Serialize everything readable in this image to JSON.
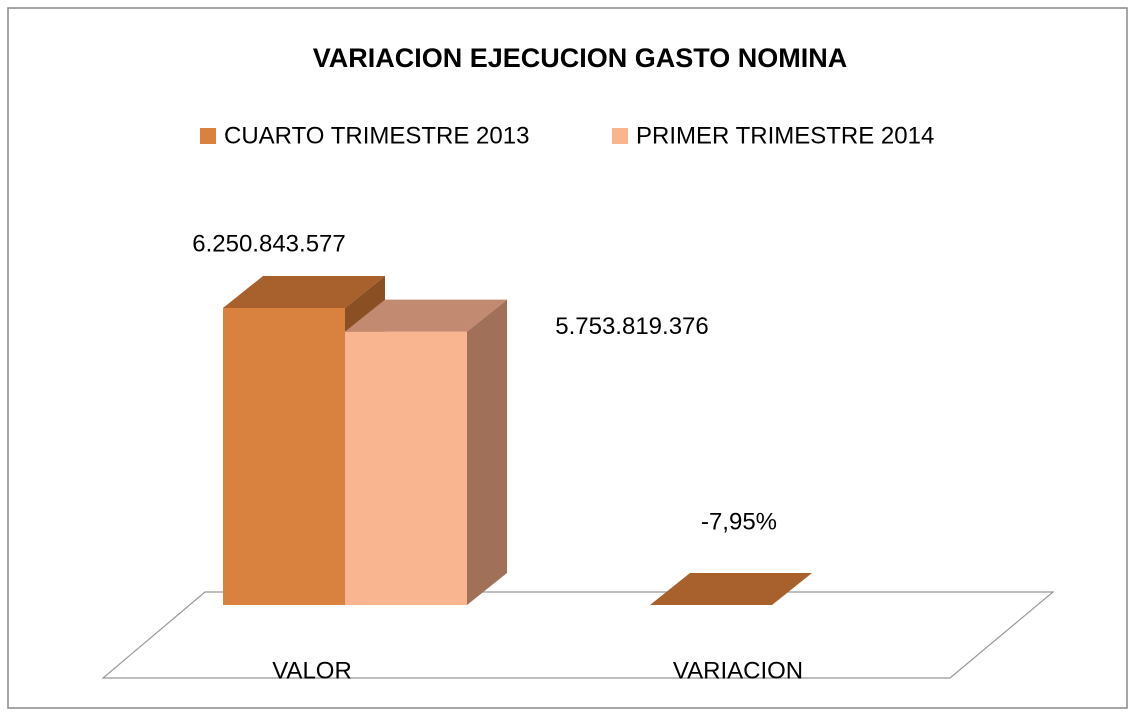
{
  "chart_data": {
    "type": "bar3d",
    "title": "VARIACION EJECUCION GASTO NOMINA",
    "categories": [
      "VALOR",
      "VARIACION"
    ],
    "series": [
      {
        "name": "CUARTO TRIMESTRE 2013",
        "color": "#d9813f",
        "top_color": "#a8602c",
        "side_color": "#8a4f22",
        "values": [
          6250843577,
          -7.95
        ],
        "value_labels": [
          "6.250.843.577",
          "-7,95%"
        ]
      },
      {
        "name": "PRIMER  TRIMESTRE 2014",
        "color": "#f9b590",
        "top_color": "#c28a70",
        "side_color": "#a07058",
        "values": [
          5753819376,
          null
        ],
        "value_labels": [
          "5.753.819.376",
          null
        ]
      }
    ],
    "legend": "top"
  }
}
